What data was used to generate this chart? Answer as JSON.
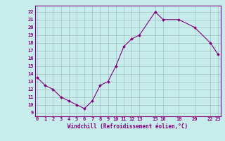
{
  "x": [
    0,
    1,
    2,
    3,
    4,
    5,
    6,
    7,
    8,
    9,
    10,
    11,
    12,
    13,
    15,
    16,
    18,
    20,
    22,
    23
  ],
  "y": [
    13.5,
    12.5,
    12.0,
    11.0,
    10.5,
    10.0,
    9.5,
    10.5,
    12.5,
    13.0,
    15.0,
    17.5,
    18.5,
    19.0,
    22.0,
    21.0,
    21.0,
    20.0,
    18.0,
    16.5
  ],
  "xlabel": "Windchill (Refroidissement éolien,°C)",
  "xticks": [
    0,
    1,
    2,
    3,
    4,
    5,
    6,
    7,
    8,
    9,
    10,
    11,
    12,
    13,
    15,
    16,
    18,
    20,
    22,
    23
  ],
  "xtick_labels": [
    "0",
    "1",
    "2",
    "3",
    "4",
    "5",
    "6",
    "7",
    "8",
    "9",
    "10",
    "11",
    "12",
    "13",
    "15",
    "16",
    "18",
    "20",
    "22",
    "23"
  ],
  "yticks": [
    9,
    10,
    11,
    12,
    13,
    14,
    15,
    16,
    17,
    18,
    19,
    20,
    21,
    22
  ],
  "ytick_labels": [
    "9",
    "10",
    "11",
    "12",
    "13",
    "14",
    "15",
    "16",
    "17",
    "18",
    "19",
    "20",
    "21",
    "22"
  ],
  "ylim": [
    8.5,
    22.8
  ],
  "xlim": [
    -0.3,
    23.3
  ],
  "line_color": "#800080",
  "marker_color": "#800080",
  "bg_color": "#c8ecec",
  "grid_color": "#a0c0c0",
  "font_color": "#800080",
  "tick_fontsize": 5.0,
  "xlabel_fontsize": 5.5
}
